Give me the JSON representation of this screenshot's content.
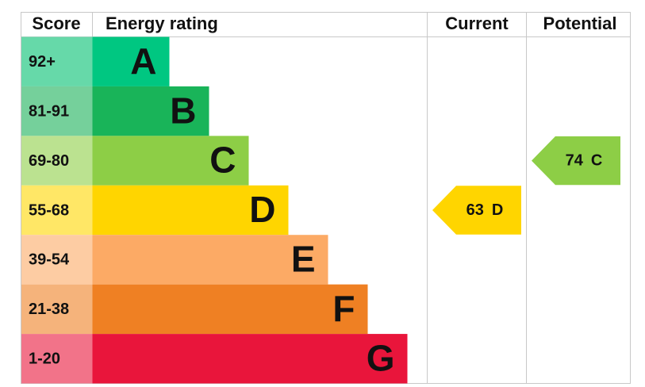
{
  "headers": {
    "score": "Score",
    "rating": "Energy rating",
    "current": "Current",
    "potential": "Potential"
  },
  "bands": [
    {
      "score": "92+",
      "letter": "A",
      "color": "#00c781",
      "light": "#66d9a9"
    },
    {
      "score": "81-91",
      "letter": "B",
      "color": "#19b459",
      "light": "#75d09b"
    },
    {
      "score": "69-80",
      "letter": "C",
      "color": "#8dce46",
      "light": "#bbe290"
    },
    {
      "score": "55-68",
      "letter": "D",
      "color": "#ffd500",
      "light": "#ffe766"
    },
    {
      "score": "39-54",
      "letter": "E",
      "color": "#fcaa65",
      "light": "#fdcca3"
    },
    {
      "score": "21-38",
      "letter": "F",
      "color": "#ef8023",
      "light": "#f5b37b"
    },
    {
      "score": "1-20",
      "letter": "G",
      "color": "#e9153b",
      "light": "#f27389"
    }
  ],
  "current": {
    "value": 63,
    "band": "D"
  },
  "potential": {
    "value": 74,
    "band": "C"
  }
}
